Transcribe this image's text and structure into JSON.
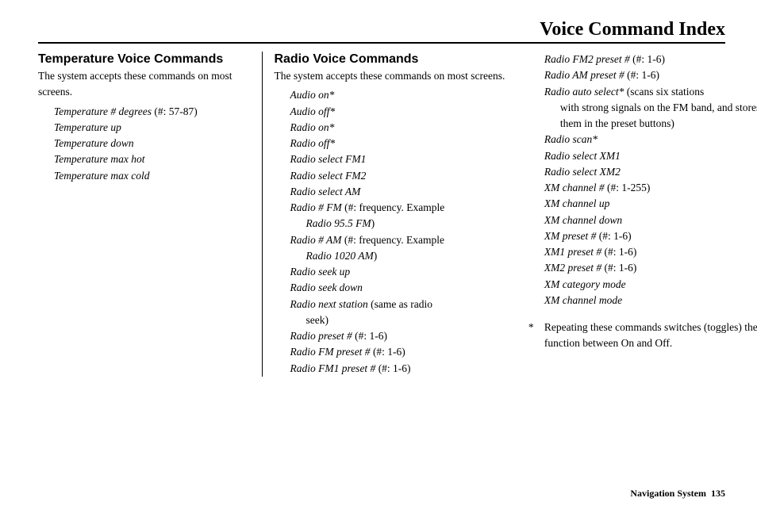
{
  "header": {
    "title": "Voice Command Index"
  },
  "col1": {
    "heading": "Temperature Voice Commands",
    "intro": "The system accepts these commands on most screens.",
    "commands": [
      {
        "name": "Temperature # degrees",
        "note": " (#: 57-87)"
      },
      {
        "name": "Temperature up"
      },
      {
        "name": "Temperature down"
      },
      {
        "name": "Temperature max hot"
      },
      {
        "name": "Temperature max cold"
      }
    ]
  },
  "col2": {
    "heading": "Radio Voice Commands",
    "intro": "The system accepts these commands on most screens.",
    "commands": [
      {
        "name": "Audio on*"
      },
      {
        "name": "Audio off*"
      },
      {
        "name": "Radio on*"
      },
      {
        "name": "Radio off*"
      },
      {
        "name": "Radio select FM1"
      },
      {
        "name": "Radio select FM2"
      },
      {
        "name": "Radio select AM"
      },
      {
        "name": "Radio # FM",
        "note": " (#: frequency. Example ",
        "sub_italic": "Radio 95.5 FM",
        "sub_close": ")"
      },
      {
        "name": "Radio # AM",
        "note": " (#: frequency. Example ",
        "sub_italic": "Radio 1020 AM",
        "sub_close": ")"
      },
      {
        "name": "Radio seek up"
      },
      {
        "name": "Radio seek down"
      },
      {
        "name": "Radio next station",
        "note": " (same as radio ",
        "sub_plain": "seek)"
      },
      {
        "name": "Radio preset #",
        "note": " (#: 1-6)"
      },
      {
        "name": "Radio FM preset #",
        "note": " (#: 1-6)"
      },
      {
        "name": "Radio FM1 preset #",
        "note": " (#: 1-6)"
      }
    ]
  },
  "col3": {
    "commands": [
      {
        "name": "Radio FM2 preset #",
        "note": " (#: 1-6)"
      },
      {
        "name": "Radio AM preset #",
        "note": " (#: 1-6)"
      },
      {
        "name": "Radio auto select*",
        "note": " (scans six stations ",
        "sub_plain": "with strong signals on the FM band, and stores them in the preset buttons)"
      },
      {
        "name": "Radio scan*"
      },
      {
        "name": "Radio select XM1"
      },
      {
        "name": "Radio select XM2"
      },
      {
        "name": "XM channel #",
        "note": " (#: 1-255)"
      },
      {
        "name": "XM channel up"
      },
      {
        "name": "XM channel down"
      },
      {
        "name": "XM preset #",
        "note": " (#: 1-6)"
      },
      {
        "name": "XM1 preset #",
        "note": " (#: 1-6)"
      },
      {
        "name": "XM2 preset #",
        "note": " (#: 1-6)"
      },
      {
        "name": "XM category mode"
      },
      {
        "name": "XM channel mode"
      }
    ],
    "footnote_star": "*",
    "footnote_text": "Repeating these commands switches (toggles) the function between On and Off."
  },
  "footer": {
    "label": "Navigation System",
    "page": "135"
  }
}
